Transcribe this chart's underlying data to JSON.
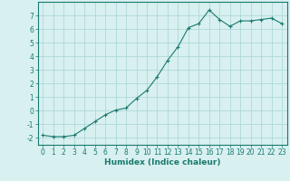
{
  "x": [
    0,
    1,
    2,
    3,
    4,
    5,
    6,
    7,
    8,
    9,
    10,
    11,
    12,
    13,
    14,
    15,
    16,
    17,
    18,
    19,
    20,
    21,
    22,
    23
  ],
  "y": [
    -1.8,
    -1.9,
    -1.9,
    -1.8,
    -1.3,
    -0.8,
    -0.3,
    0.05,
    0.2,
    0.9,
    1.5,
    2.5,
    3.7,
    4.7,
    6.1,
    6.4,
    7.4,
    6.7,
    6.2,
    6.6,
    6.6,
    6.7,
    6.8,
    6.4
  ],
  "line_color": "#1a7a6e",
  "marker": "+",
  "marker_size": 3,
  "bg_color": "#d8f0f0",
  "grid_color": "#b0d8d8",
  "xlabel": "Humidex (Indice chaleur)",
  "ylim": [
    -2.5,
    8.0
  ],
  "xlim": [
    -0.5,
    23.5
  ],
  "yticks": [
    -2,
    -1,
    0,
    1,
    2,
    3,
    4,
    5,
    6,
    7
  ],
  "xticks": [
    0,
    1,
    2,
    3,
    4,
    5,
    6,
    7,
    8,
    9,
    10,
    11,
    12,
    13,
    14,
    15,
    16,
    17,
    18,
    19,
    20,
    21,
    22,
    23
  ],
  "tick_color": "#1a7a6e",
  "label_fontsize": 5.5,
  "axis_fontsize": 6.5
}
